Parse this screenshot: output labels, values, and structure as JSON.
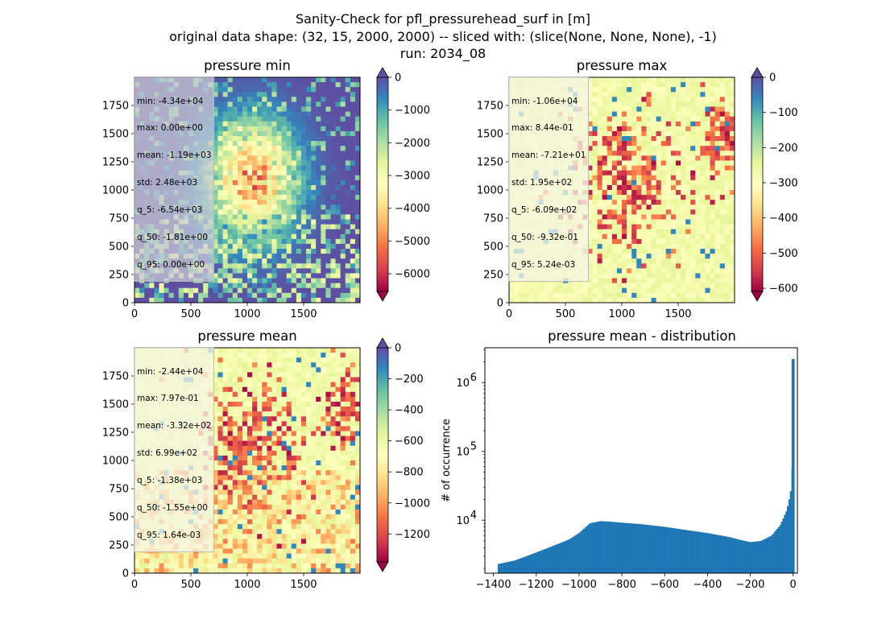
{
  "figure": {
    "suptitle_lines": [
      "Sanity-Check for pfl_pressurehead_surf in [m]",
      "original data shape: (32, 15, 2000, 2000) -- sliced with: (slice(None, None, None), -1)",
      "run: 2034_08"
    ]
  },
  "panels": [
    {
      "title": "pressure min",
      "stats": [
        "min: -4.34e+04",
        "max: 0.00e+00",
        "mean: -1.19e+03",
        "std: 2.48e+03",
        "q_5: -6.54e+03",
        "q_50: -1.81e+00",
        "q_95: 0.00e+00"
      ],
      "xticks": [
        "0",
        "500",
        "1000",
        "1500"
      ],
      "yticks": [
        "0",
        "250",
        "500",
        "750",
        "1000",
        "1250",
        "1500",
        "1750"
      ],
      "colorbar": {
        "ticks": [
          "0",
          "−1000",
          "−2000",
          "−3000",
          "−4000",
          "−5000",
          "−6000"
        ],
        "range": [
          -6540,
          0
        ],
        "tick_values": [
          0,
          -1000,
          -2000,
          -3000,
          -4000,
          -5000,
          -6000
        ]
      },
      "dominant": "dark"
    },
    {
      "title": "pressure max",
      "stats": [
        "min: -1.06e+04",
        "max: 8.44e-01",
        "mean: -7.21e+01",
        "std: 1.95e+02",
        "q_5: -6.09e+02",
        "q_50: -9.32e-01",
        "q_95: 5.24e-03"
      ],
      "xticks": [
        "0",
        "500",
        "1000",
        "1500"
      ],
      "yticks": [
        "0",
        "250",
        "500",
        "750",
        "1000",
        "1250",
        "1500",
        "1750"
      ],
      "colorbar": {
        "ticks": [
          "0",
          "−100",
          "−200",
          "−300",
          "−400",
          "−500",
          "−600"
        ],
        "range": [
          -609,
          0
        ],
        "tick_values": [
          0,
          -100,
          -200,
          -300,
          -400,
          -500,
          -600
        ]
      },
      "dominant": "light"
    },
    {
      "title": "pressure mean",
      "stats": [
        "min: -2.44e+04",
        "max: 7.97e-01",
        "mean: -3.32e+02",
        "std: 6.99e+02",
        "q_5: -1.38e+03",
        "q_50: -1.55e+00",
        "q_95: 1.64e-03"
      ],
      "xticks": [
        "0",
        "500",
        "1000",
        "1500"
      ],
      "yticks": [
        "0",
        "250",
        "500",
        "750",
        "1000",
        "1250",
        "1500",
        "1750"
      ],
      "colorbar": {
        "ticks": [
          "0",
          "−200",
          "−400",
          "−600",
          "−800",
          "−1000",
          "−1200"
        ],
        "range": [
          -1380,
          0
        ],
        "tick_values": [
          0,
          -200,
          -400,
          -600,
          -800,
          -1000,
          -1200
        ]
      },
      "dominant": "light"
    }
  ],
  "histogram": {
    "title": "pressure mean - distribution",
    "ylabel": "# of occurrence",
    "xticks": [
      "−1400",
      "−1200",
      "−1000",
      "−800",
      "−600",
      "−400",
      "−200",
      "0"
    ],
    "ytick_labels": [
      {
        "base": "10",
        "exp": "4"
      },
      {
        "base": "10",
        "exp": "5"
      },
      {
        "base": "10",
        "exp": "6"
      }
    ]
  },
  "colors": {
    "histogram_bar": "#1f77b4",
    "colormap": [
      "#9e0142",
      "#d53e4f",
      "#f46d43",
      "#fdae61",
      "#fee08b",
      "#ffffbf",
      "#e6f598",
      "#abdda4",
      "#66c2a5",
      "#3288bd",
      "#5e4fa2"
    ]
  },
  "chart_data": [
    {
      "type": "heatmap",
      "title": "pressure min",
      "xlim": [
        0,
        2000
      ],
      "ylim": [
        0,
        2000
      ],
      "colorbar_range": [
        -6540,
        0
      ],
      "colormap": "Spectral",
      "grid": false
    },
    {
      "type": "heatmap",
      "title": "pressure max",
      "xlim": [
        0,
        2000
      ],
      "ylim": [
        0,
        2000
      ],
      "colorbar_range": [
        -609,
        0
      ],
      "colormap": "Spectral",
      "grid": false
    },
    {
      "type": "heatmap",
      "title": "pressure mean",
      "xlim": [
        0,
        2000
      ],
      "ylim": [
        0,
        2000
      ],
      "colorbar_range": [
        -1380,
        0
      ],
      "colormap": "Spectral",
      "grid": false
    },
    {
      "type": "bar",
      "title": "pressure mean - distribution",
      "ylabel": "# of occurrence",
      "xlim": [
        -1440,
        20
      ],
      "ylim": [
        1700,
        3200000
      ],
      "yscale": "log",
      "bin_width": 7,
      "x": [
        -1380,
        -1300,
        -1200,
        -1100,
        -1050,
        -1000,
        -950,
        -900,
        -850,
        -800,
        -700,
        -600,
        -500,
        -400,
        -300,
        -250,
        -200,
        -150,
        -100,
        -60,
        -30,
        -20,
        -10,
        -5,
        0
      ],
      "values": [
        2300,
        2600,
        3400,
        4500,
        5200,
        6500,
        9000,
        9700,
        9500,
        9200,
        8700,
        8000,
        7200,
        6500,
        5700,
        5200,
        4800,
        5000,
        6000,
        8500,
        14000,
        19000,
        28000,
        38000,
        2200000
      ]
    }
  ]
}
